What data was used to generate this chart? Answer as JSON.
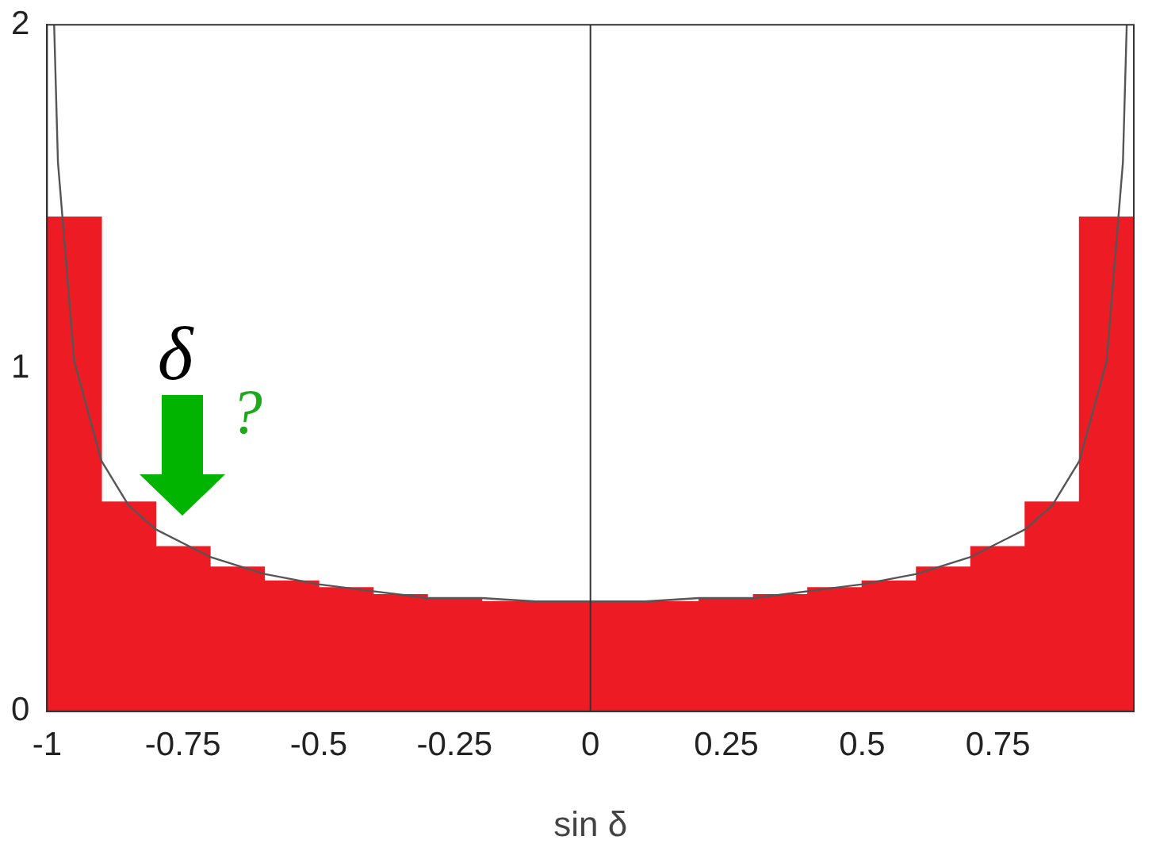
{
  "chart_data": {
    "type": "histogram",
    "bins": [
      -1,
      -0.9,
      -0.8,
      -0.7,
      -0.6,
      -0.5,
      -0.4,
      -0.3,
      -0.2,
      -0.1,
      0,
      0.1,
      0.2,
      0.3,
      0.4,
      0.5,
      0.6,
      0.7,
      0.8,
      0.9,
      1
    ],
    "values": [
      1.44,
      0.61,
      0.48,
      0.42,
      0.38,
      0.36,
      0.34,
      0.33,
      0.32,
      0.32,
      0.32,
      0.32,
      0.33,
      0.34,
      0.36,
      0.38,
      0.42,
      0.48,
      0.61,
      1.44
    ],
    "color": "#ed1c24",
    "series": [
      {
        "type": "line",
        "color": "#555555",
        "x": [
          -0.987,
          -0.98,
          -0.95,
          -0.9,
          -0.85,
          -0.8,
          -0.7,
          -0.6,
          -0.5,
          -0.4,
          -0.3,
          -0.2,
          -0.1,
          0,
          0.1,
          0.2,
          0.3,
          0.4,
          0.5,
          0.6,
          0.7,
          0.8,
          0.85,
          0.9,
          0.95,
          0.98,
          0.987
        ],
        "values": [
          2.0,
          1.6,
          1.02,
          0.73,
          0.6,
          0.53,
          0.45,
          0.4,
          0.37,
          0.35,
          0.33,
          0.33,
          0.32,
          0.32,
          0.32,
          0.33,
          0.33,
          0.35,
          0.37,
          0.4,
          0.45,
          0.53,
          0.6,
          0.73,
          1.02,
          1.6,
          2.0
        ]
      }
    ],
    "xlabel": "sin δ",
    "xlim": [
      -1,
      1
    ],
    "xticks": [
      -1,
      -0.75,
      -0.5,
      -0.25,
      0,
      0.25,
      0.5,
      0.75
    ],
    "ylim": [
      0,
      2
    ],
    "yticks": [
      0,
      1,
      2
    ],
    "ref_lines": [
      {
        "axis": "x",
        "value": 0,
        "color": "#333333"
      }
    ],
    "annotations": [
      "δ",
      "?"
    ],
    "grid": false,
    "legend": false
  }
}
